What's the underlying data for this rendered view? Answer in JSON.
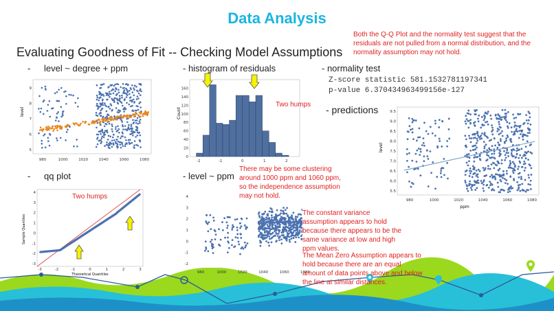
{
  "slide": {
    "title": "Data Analysis",
    "subtitle": "Evaluating Goodness of Fit -- Checking Model Assumptions",
    "bullets": {
      "b1": "level ~ degree + ppm",
      "b2": "- histogram of residuals",
      "b3": "- normality test",
      "b4": "- predictions",
      "b5": "qq plot",
      "b6": "- level ~ ppm",
      "dash": "-"
    },
    "normality_output": {
      "line1": "Z-score statistic 581.1532781197341",
      "line2": "p-value 6.370434963499156e-127"
    },
    "notes": {
      "top_right": "Both the Q-Q Plot and the normality test suggest that the residuals are not pulled from a normal distribution, and the normality assumption may not hold.",
      "two_humps_hist": "Two humps",
      "two_humps_qq": "Two humps",
      "clustering": "There may be some clustering around 1000 ppm and 1060 ppm, so the independence assumption may not hold.",
      "constant_variance": "The constant variance assumption appears to hold because there appears to be the same variance at low and high ppm values.",
      "mean_zero": "The Mean Zero Assumption appears to hold because there are an equal amount of data points above and below the line at similar distances."
    },
    "colors": {
      "title": "#19b5e0",
      "note": "#e02020",
      "points_blue": "#4c72b0",
      "points_orange": "#e8871e",
      "arrow_yellow": "#f6f200",
      "green": "#9bd91e",
      "teal": "#28c0d8"
    }
  },
  "charts": {
    "scatter1": {
      "yticks": [
        "9",
        "8",
        "7",
        "6",
        "5"
      ],
      "xticks": [
        "980",
        "1000",
        "1020",
        "1040",
        "1060",
        "1080"
      ],
      "ylabel": "level"
    },
    "hist": {
      "yticks": [
        "160",
        "140",
        "120",
        "100",
        "80",
        "60",
        "40",
        "20",
        "0"
      ],
      "xticks": [
        "-2",
        "-1",
        "0",
        "1",
        "2"
      ],
      "ylabel": "Count"
    },
    "pred": {
      "yticks": [
        "9.5",
        "9.0",
        "8.5",
        "8.0",
        "7.5",
        "7.0",
        "6.5",
        "6.0",
        "5.5"
      ],
      "xticks": [
        "980",
        "1000",
        "1020",
        "1040",
        "1060",
        "1080"
      ],
      "xlabel": "ppm",
      "ylabel": "level"
    },
    "qq": {
      "yticks": [
        "4",
        "3",
        "2",
        "1",
        "0",
        "-1",
        "-2",
        "-3"
      ],
      "xticks": [
        "-3",
        "-2",
        "-1",
        "0",
        "1",
        "2",
        "3"
      ],
      "xlabel": "Theoretical Quantiles",
      "ylabel": "Sample Quantiles"
    },
    "resid": {
      "yticks": [
        "4",
        "3",
        "2",
        "1",
        "0",
        "-1",
        "-2"
      ],
      "xticks": [
        "980",
        "1000",
        "1020",
        "1040",
        "1060",
        "1080"
      ]
    }
  },
  "chart_data": [
    {
      "type": "bar",
      "name_ref": "histogram of residuals",
      "xlabel": "",
      "ylabel": "Count",
      "bin_edges": [
        -2.1,
        -1.8,
        -1.5,
        -1.2,
        -0.9,
        -0.6,
        -0.3,
        0.0,
        0.3,
        0.6,
        0.9,
        1.2,
        1.5,
        1.8,
        2.1
      ],
      "values": [
        8,
        50,
        168,
        78,
        75,
        85,
        143,
        143,
        128,
        143,
        60,
        33,
        8,
        3
      ],
      "ylim": [
        0,
        180
      ],
      "xlim": [
        -2.4,
        2.6
      ]
    },
    {
      "type": "scatter",
      "name_ref": "qq plot",
      "xlabel": "Theoretical Quantiles",
      "ylabel": "Sample Quantiles",
      "xlim": [
        -3.2,
        3.2
      ],
      "ylim": [
        -3.3,
        4.2
      ],
      "reference_line": [
        [
          -3.2,
          -3.2
        ],
        [
          3.2,
          3.2
        ]
      ]
    }
  ]
}
